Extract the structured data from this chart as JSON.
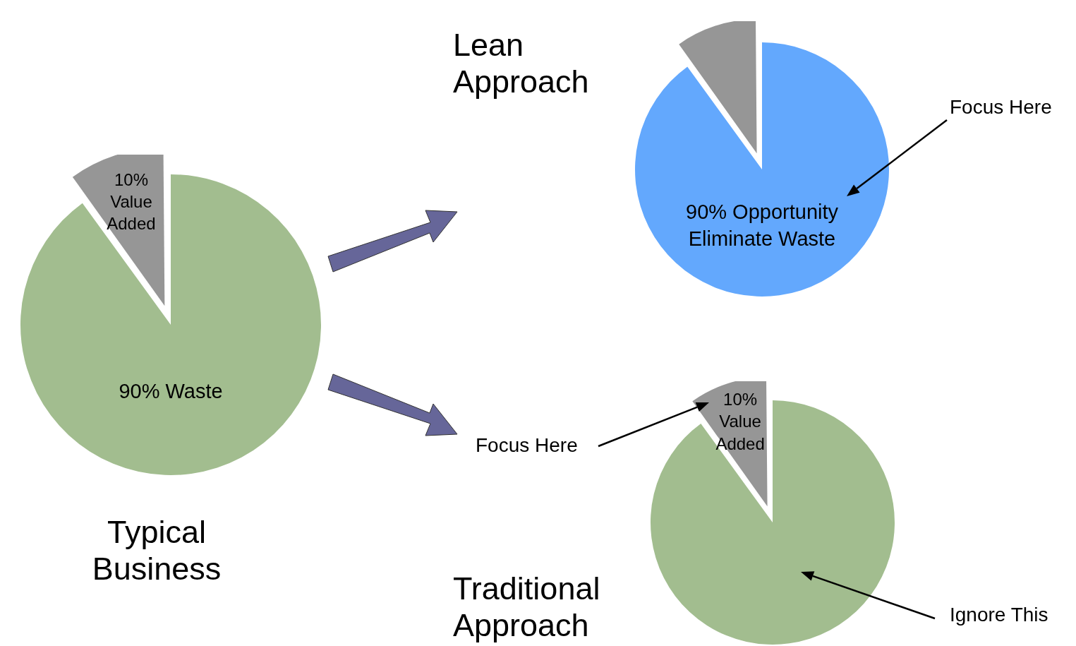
{
  "chart_data": [
    {
      "type": "pie",
      "title": "Typical Business",
      "categories": [
        null,
        null
      ],
      "values": [
        10,
        90
      ],
      "colors": [
        "#969696",
        "#a2bd8f"
      ],
      "value_labels": [
        "10% Value Added",
        "90% Waste"
      ]
    },
    {
      "type": "pie",
      "title": "Lean Approach",
      "categories": [
        null,
        null
      ],
      "values": [
        10,
        90
      ],
      "colors": [
        "#969696",
        "#63a8fd"
      ],
      "value_labels": [
        null,
        "90% Opportunity Eliminate Waste"
      ],
      "annotations": [
        "Focus Here"
      ]
    },
    {
      "type": "pie",
      "title": "Traditional Approach",
      "categories": [
        null,
        null
      ],
      "values": [
        10,
        90
      ],
      "colors": [
        "#969696",
        "#a2bd8f"
      ],
      "value_labels": [
        "10% Value Added",
        null
      ],
      "annotations": [
        "Focus Here",
        "Ignore This"
      ]
    }
  ]
}
